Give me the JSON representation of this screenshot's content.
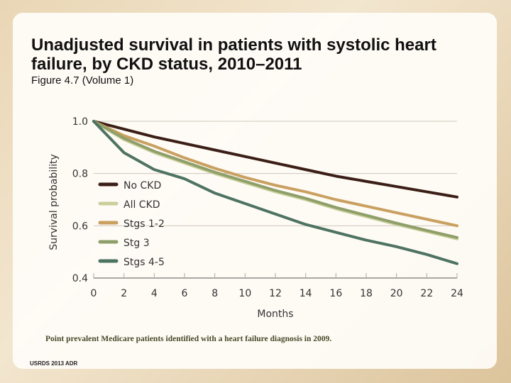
{
  "title": "Unadjusted survival in patients with systolic heart failure, by CKD status, 2010–2011",
  "subtitle": "Figure 4.7 (Volume 1)",
  "note": "Point prevalent Medicare patients identified with a heart failure diagnosis in 2009.",
  "source": "USRDS 2013 ADR",
  "chart_data": {
    "type": "line",
    "xlabel": "Months",
    "ylabel": "Survival probability",
    "xlim": [
      0,
      24
    ],
    "ylim": [
      0.4,
      1.0
    ],
    "xticks": [
      "0",
      "2",
      "4",
      "6",
      "8",
      "10",
      "12",
      "14",
      "16",
      "18",
      "20",
      "22",
      "24"
    ],
    "yticks": [
      "1.0",
      "0.8",
      "0.6",
      "0.4"
    ],
    "grid": "horizontal",
    "legend_position": "left",
    "x": [
      0,
      2,
      4,
      6,
      8,
      10,
      12,
      14,
      16,
      18,
      20,
      22,
      24
    ],
    "series": [
      {
        "name": "No CKD",
        "color": "#3b1f17",
        "values": [
          1.0,
          0.97,
          0.94,
          0.915,
          0.89,
          0.865,
          0.84,
          0.815,
          0.79,
          0.77,
          0.75,
          0.73,
          0.71
        ]
      },
      {
        "name": "All CKD",
        "color": "#c9cf9a",
        "values": [
          1.0,
          0.93,
          0.88,
          0.84,
          0.8,
          0.765,
          0.73,
          0.7,
          0.665,
          0.635,
          0.605,
          0.578,
          0.55
        ]
      },
      {
        "name": "Stgs 1-2",
        "color": "#c9a060",
        "values": [
          1.0,
          0.945,
          0.905,
          0.86,
          0.82,
          0.785,
          0.755,
          0.73,
          0.7,
          0.675,
          0.65,
          0.625,
          0.6
        ]
      },
      {
        "name": "Stg 3",
        "color": "#8f9f6a",
        "values": [
          1.0,
          0.935,
          0.885,
          0.845,
          0.805,
          0.77,
          0.735,
          0.705,
          0.67,
          0.64,
          0.61,
          0.582,
          0.555
        ]
      },
      {
        "name": "Stgs 4-5",
        "color": "#4e7362",
        "values": [
          1.0,
          0.88,
          0.815,
          0.78,
          0.725,
          0.685,
          0.645,
          0.605,
          0.575,
          0.545,
          0.52,
          0.49,
          0.455
        ]
      }
    ]
  }
}
